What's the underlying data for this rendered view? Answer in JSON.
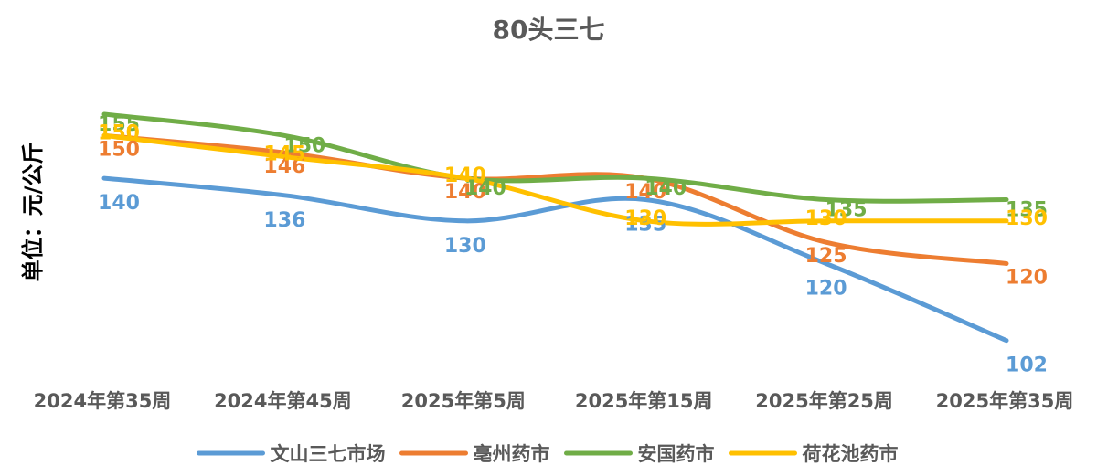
{
  "chart_data": {
    "type": "line",
    "title": "80头三七",
    "ylabel": "单位：元/公斤",
    "xlabel": "",
    "categories": [
      "2024年第35周",
      "2024年第45周",
      "2025年第5周",
      "2025年第15周",
      "2025年第25周",
      "2025年第35周"
    ],
    "ylim": [
      100,
      155
    ],
    "grid": false,
    "legend_position": "bottom",
    "series": [
      {
        "name": "文山三七市场",
        "color": "#5B9BD5",
        "values": [
          140,
          136,
          130,
          135,
          120,
          102
        ]
      },
      {
        "name": "亳州药市",
        "color": "#ED7D31",
        "values": [
          150,
          146,
          140,
          140,
          125,
          120
        ]
      },
      {
        "name": "安国药市",
        "color": "#70AD47",
        "values": [
          155,
          150,
          140,
          140,
          135,
          135
        ]
      },
      {
        "name": "荷花池药市",
        "color": "#FFC000",
        "values": [
          150,
          145,
          140,
          130,
          130,
          130
        ]
      }
    ]
  }
}
